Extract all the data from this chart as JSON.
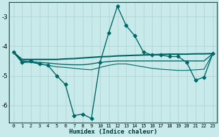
{
  "xlabel": "Humidex (Indice chaleur)",
  "background_color": "#c8eaea",
  "grid_color": "#b0d0d0",
  "line_color": "#006666",
  "xlim": [
    -0.5,
    23.5
  ],
  "ylim": [
    -6.6,
    -2.5
  ],
  "yticks": [
    -6,
    -5,
    -4,
    -3
  ],
  "xtick_labels": [
    "0",
    "1",
    "2",
    "3",
    "4",
    "5",
    "6",
    "7",
    "8",
    "9",
    "10",
    "11",
    "12",
    "13",
    "14",
    "15",
    "16",
    "17",
    "18",
    "19",
    "20",
    "21",
    "22",
    "23"
  ],
  "series": [
    {
      "x": [
        0,
        1,
        2,
        3,
        4,
        5,
        6,
        7,
        8,
        9,
        10,
        11,
        12,
        13,
        14,
        15,
        16,
        17,
        18,
        19,
        20,
        21,
        22,
        23
      ],
      "y": [
        -4.2,
        -4.55,
        -4.5,
        -4.6,
        -4.65,
        -5.0,
        -5.3,
        -6.35,
        -6.3,
        -6.45,
        -4.55,
        -3.55,
        -2.65,
        -3.3,
        -3.65,
        -4.2,
        -4.3,
        -4.3,
        -4.35,
        -4.35,
        -4.55,
        -5.15,
        -5.05,
        -4.25
      ],
      "marker": "D",
      "markersize": 2.5,
      "linewidth": 1.0
    },
    {
      "x": [
        0,
        1,
        2,
        3,
        4,
        5,
        6,
        7,
        8,
        9,
        10,
        11,
        12,
        13,
        14,
        15,
        16,
        17,
        18,
        19,
        20,
        21,
        22,
        23
      ],
      "y": [
        -4.2,
        -4.45,
        -4.45,
        -4.45,
        -4.45,
        -4.45,
        -4.43,
        -4.42,
        -4.4,
        -4.38,
        -4.36,
        -4.35,
        -4.33,
        -4.32,
        -4.31,
        -4.3,
        -4.29,
        -4.28,
        -4.27,
        -4.27,
        -4.27,
        -4.26,
        -4.26,
        -4.25
      ],
      "marker": null,
      "markersize": 0,
      "linewidth": 1.5
    },
    {
      "x": [
        0,
        1,
        2,
        3,
        4,
        5,
        6,
        7,
        8,
        9,
        10,
        11,
        12,
        13,
        14,
        15,
        16,
        17,
        18,
        19,
        20,
        21,
        22,
        23
      ],
      "y": [
        -4.2,
        -4.5,
        -4.52,
        -4.55,
        -4.57,
        -4.6,
        -4.62,
        -4.63,
        -4.63,
        -4.6,
        -4.55,
        -4.52,
        -4.5,
        -4.5,
        -4.5,
        -4.5,
        -4.5,
        -4.5,
        -4.5,
        -4.5,
        -4.5,
        -4.5,
        -4.5,
        -4.25
      ],
      "marker": null,
      "markersize": 0,
      "linewidth": 1.0
    },
    {
      "x": [
        0,
        1,
        2,
        3,
        4,
        5,
        6,
        7,
        8,
        9,
        10,
        11,
        12,
        13,
        14,
        15,
        16,
        17,
        18,
        19,
        20,
        21,
        22,
        23
      ],
      "y": [
        -4.2,
        -4.55,
        -4.55,
        -4.6,
        -4.65,
        -4.7,
        -4.72,
        -4.75,
        -4.78,
        -4.8,
        -4.72,
        -4.65,
        -4.6,
        -4.6,
        -4.65,
        -4.7,
        -4.75,
        -4.78,
        -4.8,
        -4.82,
        -4.82,
        -4.8,
        -4.78,
        -4.25
      ],
      "marker": null,
      "markersize": 0,
      "linewidth": 0.8
    }
  ]
}
